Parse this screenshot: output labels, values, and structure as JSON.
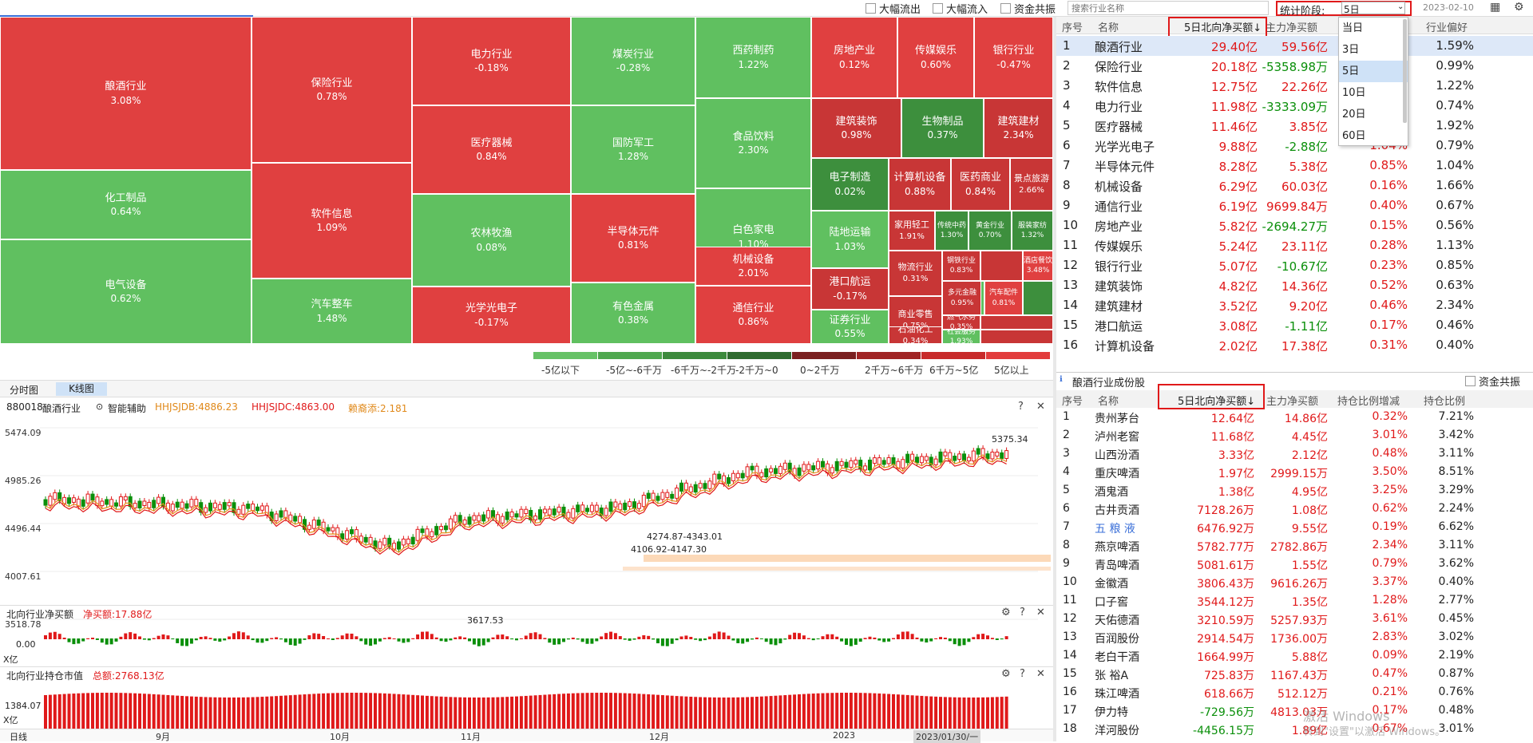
{
  "topbar": {
    "filters": [
      "大幅流出",
      "大幅流入",
      "资金共振"
    ],
    "search_placeholder": "搜索行业名称",
    "period_label": "统计阶段:",
    "period_value": "5日",
    "date": "2023-02-10"
  },
  "treemap_tiles": [
    {
      "name": "酿酒行业",
      "pct": "3.08%"
    },
    {
      "name": "保险行业",
      "pct": "0.78%"
    },
    {
      "name": "电力行业",
      "pct": "-0.18%"
    },
    {
      "name": "煤炭行业",
      "pct": "-0.28%"
    },
    {
      "name": "西药制药",
      "pct": "1.22%"
    },
    {
      "name": "房地产业",
      "pct": "0.12%"
    },
    {
      "name": "传媒娱乐",
      "pct": "0.60%"
    },
    {
      "name": "银行行业",
      "pct": "-0.47%"
    },
    {
      "name": "化工制品",
      "pct": "0.64%"
    },
    {
      "name": "软件信息",
      "pct": "1.09%"
    },
    {
      "name": "医疗器械",
      "pct": "0.84%"
    },
    {
      "name": "国防军工",
      "pct": "1.28%"
    },
    {
      "name": "食品饮料",
      "pct": "2.30%"
    },
    {
      "name": "建筑装饰",
      "pct": "0.98%"
    },
    {
      "name": "生物制品",
      "pct": "0.37%"
    },
    {
      "name": "建筑建材",
      "pct": "2.34%"
    },
    {
      "name": "电气设备",
      "pct": "0.62%"
    },
    {
      "name": "汽车整车",
      "pct": "1.48%"
    },
    {
      "name": "农林牧渔",
      "pct": "0.08%"
    },
    {
      "name": "半导体元件",
      "pct": "0.81%"
    },
    {
      "name": "白色家电",
      "pct": "1.10%"
    },
    {
      "name": "电子制造",
      "pct": "0.02%"
    },
    {
      "name": "计算机设备",
      "pct": "0.88%"
    },
    {
      "name": "医药商业",
      "pct": "0.84%"
    },
    {
      "name": "景点旅游",
      "pct": "2.66%"
    },
    {
      "name": "家用轻工",
      "pct": "1.91%"
    },
    {
      "name": "传统中药",
      "pct": "1.30%"
    },
    {
      "name": "黄金行业",
      "pct": "0.70%"
    },
    {
      "name": "服装家纺",
      "pct": "1.32%"
    },
    {
      "name": "光学光电子",
      "pct": "-0.17%"
    },
    {
      "name": "有色金属",
      "pct": "0.38%"
    },
    {
      "name": "机械设备",
      "pct": "2.01%"
    },
    {
      "name": "陆地运输",
      "pct": "1.03%"
    },
    {
      "name": "物流行业",
      "pct": "0.31%"
    },
    {
      "name": "钢铁行业",
      "pct": "0.83%"
    },
    {
      "name": "酒店餐饮",
      "pct": "3.48%"
    },
    {
      "name": "港口航运",
      "pct": "-0.17%"
    },
    {
      "name": "商业零售",
      "pct": "0.75%"
    },
    {
      "name": "多元金融",
      "pct": "0.95%"
    },
    {
      "name": "汽车配件",
      "pct": "0.81%"
    },
    {
      "name": "通信行业",
      "pct": "0.86%"
    },
    {
      "name": "证券行业",
      "pct": "0.55%"
    },
    {
      "name": "石油化工",
      "pct": "0.34%"
    },
    {
      "name": "燃气水务",
      "pct": "0.35%"
    },
    {
      "name": "社会服务",
      "pct": "1.93%"
    }
  ],
  "legend": {
    "labels": [
      "-5亿以下",
      "-5亿~-6千万",
      "-6千万~-2千万",
      "-2千万~0",
      "0~2千万",
      "2千万~6千万",
      "6千万~5亿",
      "5亿以上"
    ],
    "colors": [
      "#66c266",
      "#4fa84f",
      "#3c8a3c",
      "#2f6b2f",
      "#7a2020",
      "#a02424",
      "#c82a2a",
      "#e23c3c"
    ]
  },
  "industry_table": {
    "headers": [
      "序号",
      "名称",
      "5日北向净买额↓",
      "主力净买额",
      "",
      "行业偏好"
    ],
    "rows": [
      {
        "no": "1",
        "name": "酿酒行业",
        "north": "29.40亿",
        "main": "59.56亿",
        "ratio": "",
        "pref": "1.59%"
      },
      {
        "no": "2",
        "name": "保险行业",
        "north": "20.18亿",
        "main": "-5358.98万",
        "ratio": "",
        "pref": "0.99%"
      },
      {
        "no": "3",
        "name": "软件信息",
        "north": "12.75亿",
        "main": "22.26亿",
        "ratio": "",
        "pref": "1.22%"
      },
      {
        "no": "4",
        "name": "电力行业",
        "north": "11.98亿",
        "main": "-3333.09万",
        "ratio": "",
        "pref": "0.74%"
      },
      {
        "no": "5",
        "name": "医疗器械",
        "north": "11.46亿",
        "main": "3.85亿",
        "ratio": "",
        "pref": "1.92%"
      },
      {
        "no": "6",
        "name": "光学光电子",
        "north": "9.88亿",
        "main": "-2.88亿",
        "ratio": "1.04%",
        "pref": "0.79%"
      },
      {
        "no": "7",
        "name": "半导体元件",
        "north": "8.28亿",
        "main": "5.38亿",
        "ratio": "0.85%",
        "pref": "1.04%"
      },
      {
        "no": "8",
        "name": "机械设备",
        "north": "6.29亿",
        "main": "60.03亿",
        "ratio": "0.16%",
        "pref": "1.66%"
      },
      {
        "no": "9",
        "name": "通信行业",
        "north": "6.19亿",
        "main": "9699.84万",
        "ratio": "0.40%",
        "pref": "0.67%"
      },
      {
        "no": "10",
        "name": "房地产业",
        "north": "5.82亿",
        "main": "-2694.27万",
        "ratio": "0.15%",
        "pref": "0.56%"
      },
      {
        "no": "11",
        "name": "传媒娱乐",
        "north": "5.24亿",
        "main": "23.11亿",
        "ratio": "0.28%",
        "pref": "1.13%"
      },
      {
        "no": "12",
        "name": "银行行业",
        "north": "5.07亿",
        "main": "-10.67亿",
        "ratio": "0.23%",
        "pref": "0.85%"
      },
      {
        "no": "13",
        "name": "建筑装饰",
        "north": "4.82亿",
        "main": "14.36亿",
        "ratio": "0.52%",
        "pref": "0.63%"
      },
      {
        "no": "14",
        "name": "建筑建材",
        "north": "3.52亿",
        "main": "9.20亿",
        "ratio": "0.46%",
        "pref": "2.34%"
      },
      {
        "no": "15",
        "name": "港口航运",
        "north": "3.08亿",
        "main": "-1.11亿",
        "ratio": "0.17%",
        "pref": "0.46%"
      },
      {
        "no": "16",
        "name": "计算机设备",
        "north": "2.02亿",
        "main": "17.38亿",
        "ratio": "0.31%",
        "pref": "0.40%"
      }
    ]
  },
  "period_options": [
    "当日",
    "3日",
    "5日",
    "10日",
    "20日",
    "60日"
  ],
  "stock_panel": {
    "title": "酿酒行业成份股",
    "checkbox": "资金共振",
    "headers": [
      "序号",
      "名称",
      "5日北向净买额↓",
      "主力净买额",
      "持仓比例增减",
      "持仓比例"
    ],
    "rows": [
      {
        "no": "1",
        "name": "贵州茅台",
        "north": "12.64亿",
        "main": "14.86亿",
        "chg": "0.32%",
        "hold": "7.21%"
      },
      {
        "no": "2",
        "name": "泸州老窖",
        "north": "11.68亿",
        "main": "4.45亿",
        "chg": "3.01%",
        "hold": "3.42%"
      },
      {
        "no": "3",
        "name": "山西汾酒",
        "north": "3.33亿",
        "main": "2.12亿",
        "chg": "0.48%",
        "hold": "3.11%"
      },
      {
        "no": "4",
        "name": "重庆啤酒",
        "north": "1.97亿",
        "main": "2999.15万",
        "chg": "3.50%",
        "hold": "8.51%"
      },
      {
        "no": "5",
        "name": "酒鬼酒",
        "north": "1.38亿",
        "main": "4.95亿",
        "chg": "3.25%",
        "hold": "3.29%"
      },
      {
        "no": "6",
        "name": "古井贡酒",
        "north": "7128.26万",
        "main": "1.08亿",
        "chg": "0.62%",
        "hold": "2.24%"
      },
      {
        "no": "7",
        "name": "五 粮 液",
        "north": "6476.92万",
        "main": "9.55亿",
        "chg": "0.19%",
        "hold": "6.62%"
      },
      {
        "no": "8",
        "name": "燕京啤酒",
        "north": "5782.77万",
        "main": "2782.86万",
        "chg": "2.34%",
        "hold": "3.11%"
      },
      {
        "no": "9",
        "name": "青岛啤酒",
        "north": "5081.61万",
        "main": "1.55亿",
        "chg": "0.79%",
        "hold": "3.62%"
      },
      {
        "no": "10",
        "name": "金徽酒",
        "north": "3806.43万",
        "main": "9616.26万",
        "chg": "3.37%",
        "hold": "0.40%"
      },
      {
        "no": "11",
        "name": "口子窖",
        "north": "3544.12万",
        "main": "1.35亿",
        "chg": "1.28%",
        "hold": "2.77%"
      },
      {
        "no": "12",
        "name": "天佑德酒",
        "north": "3210.59万",
        "main": "5257.93万",
        "chg": "3.61%",
        "hold": "0.45%"
      },
      {
        "no": "13",
        "name": "百润股份",
        "north": "2914.54万",
        "main": "1736.00万",
        "chg": "2.83%",
        "hold": "3.02%"
      },
      {
        "no": "14",
        "name": "老白干酒",
        "north": "1664.99万",
        "main": "5.88亿",
        "chg": "0.09%",
        "hold": "2.19%"
      },
      {
        "no": "15",
        "name": "张 裕A",
        "north": "725.83万",
        "main": "1167.43万",
        "chg": "0.47%",
        "hold": "0.87%"
      },
      {
        "no": "16",
        "name": "珠江啤酒",
        "north": "618.66万",
        "main": "512.12万",
        "chg": "0.21%",
        "hold": "0.76%"
      },
      {
        "no": "17",
        "name": "伊力特",
        "north": "-729.56万",
        "main": "4813.03万",
        "chg": "0.17%",
        "hold": "0.48%"
      },
      {
        "no": "18",
        "name": "洋河股份",
        "north": "-4456.15万",
        "main": "1.89亿",
        "chg": "0.67%",
        "hold": "3.01%"
      }
    ]
  },
  "chart_tabs": [
    "分时图",
    "K线图"
  ],
  "kline": {
    "code": "880018",
    "name": "酿酒行业",
    "assist": "智能辅助",
    "ind1": "HHJSJDB:4886.23",
    "ind2": "HHJSJDC:4863.00",
    "ind3": "赖裔添:2.181",
    "yticks": [
      "5474.09",
      "4985.26",
      "4496.44",
      "4007.61",
      "3518.78"
    ],
    "ann_high": "5375.34",
    "ann_low": "3617.53",
    "ann_band1": "4274.87-4343.01",
    "ann_band2": "4106.92-4147.30"
  },
  "netbuy_panel": {
    "title": "北向行业净买额",
    "value": "净买额:17.88亿",
    "zero": "0.00",
    "unit": "X亿"
  },
  "holding_panel": {
    "title": "北向行业持仓市值",
    "value": "总额:2768.13亿",
    "ytick": "1384.07",
    "unit": "X亿"
  },
  "xaxis": {
    "first": "日线",
    "labels": [
      "9月",
      "10月",
      "11月",
      "12月",
      "2023",
      "2023/01/30/一"
    ]
  },
  "watermark": {
    "line1": "激活 Windows",
    "line2": "转到\"设置\"以激活 Windows。"
  }
}
